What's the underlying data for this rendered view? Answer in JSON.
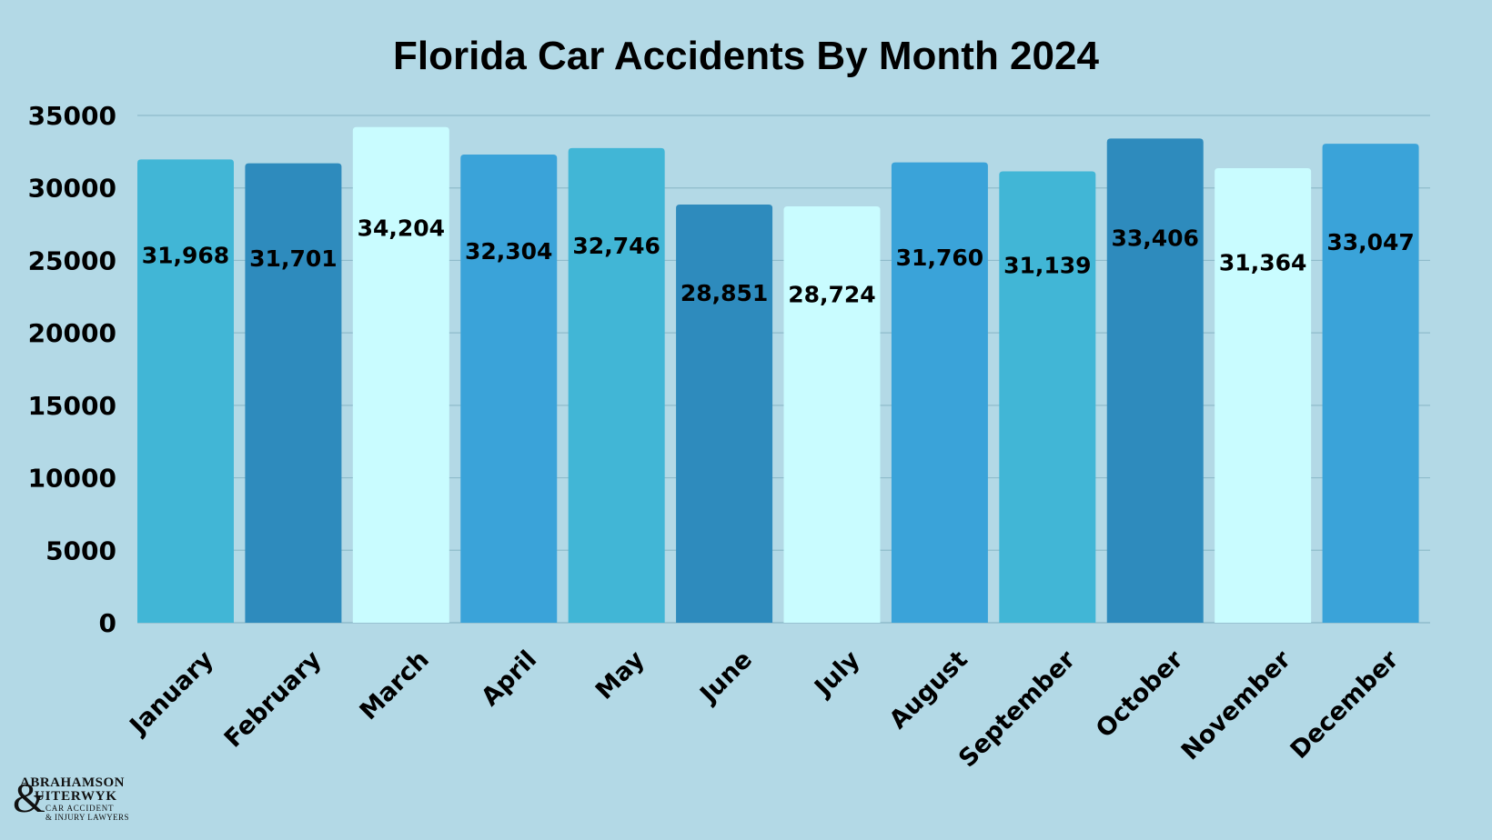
{
  "chart_data": {
    "type": "bar",
    "title": "Florida Car Accidents By Month 2024",
    "xlabel": "",
    "ylabel": "",
    "categories": [
      "January",
      "February",
      "March",
      "April",
      "May",
      "June",
      "July",
      "August",
      "September",
      "October",
      "November",
      "December"
    ],
    "values": [
      31968,
      31701,
      34204,
      32304,
      32746,
      28851,
      28724,
      31760,
      31139,
      33406,
      31364,
      33047
    ],
    "data_labels": [
      "31,968",
      "31,701",
      "34,204",
      "32,304",
      "32,746",
      "28,851",
      "28,724",
      "31,760",
      "31,139",
      "33,406",
      "31,364",
      "33,047"
    ],
    "yticks": [
      "0",
      "5000",
      "10000",
      "15000",
      "20000",
      "25000",
      "30000",
      "35000"
    ],
    "ylim": [
      0,
      35000
    ],
    "grid": true,
    "legend": "none",
    "bar_colors": [
      "#41b6d6",
      "#2e8bbd",
      "#c9fcff",
      "#3aa3d9",
      "#41b6d6",
      "#2e8bbd",
      "#c9fcff",
      "#3aa3d9",
      "#41b6d6",
      "#2e8bbd",
      "#c9fcff",
      "#3aa3d9"
    ]
  },
  "logo": {
    "line1": "ABRAHAMSON",
    "ampersand": "&",
    "line2": "UITERWYK",
    "line3": "CAR ACCIDENT",
    "line4": "& INJURY LAWYERS"
  },
  "colors": {
    "background": "#b3d9e6",
    "grid": "#8fbccb"
  }
}
